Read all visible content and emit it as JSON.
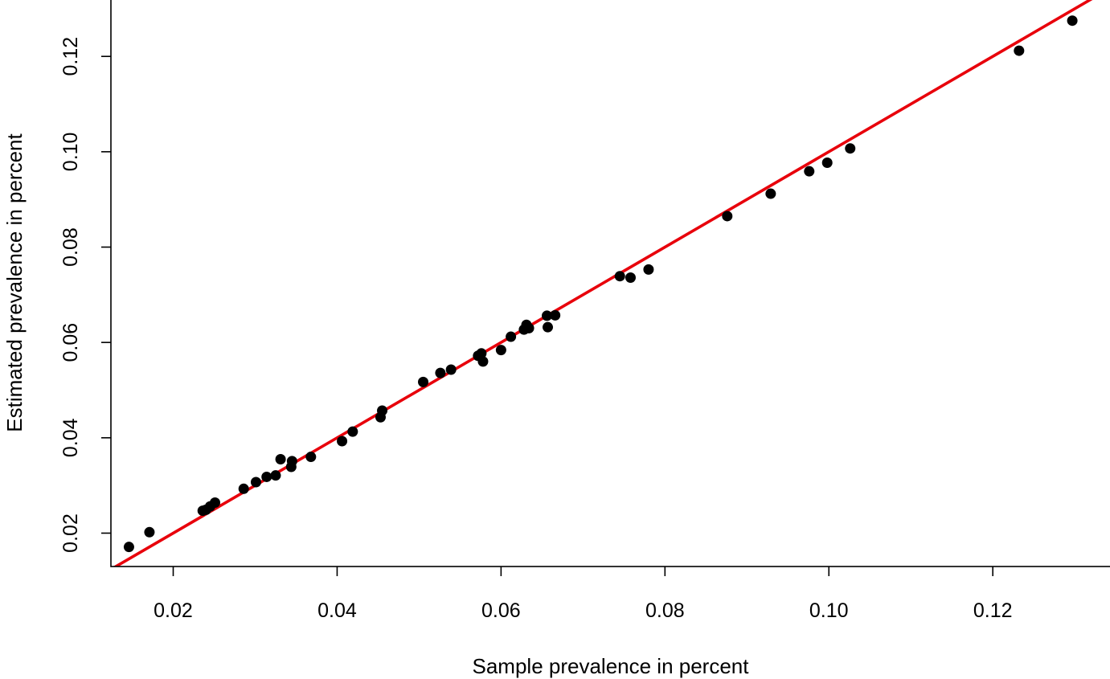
{
  "chart_data": {
    "type": "scatter",
    "title": "",
    "xlabel": "Sample prevalence in percent",
    "ylabel": "Estimated prevalence in percent",
    "xlim": [
      0.0124,
      0.1343
    ],
    "ylim": [
      0.013,
      0.132
    ],
    "grid": false,
    "xticks": [
      0.02,
      0.04,
      0.06,
      0.08,
      0.1,
      0.12
    ],
    "xtick_labels": [
      "0.02",
      "0.04",
      "0.06",
      "0.08",
      "0.10",
      "0.12"
    ],
    "yticks": [
      0.02,
      0.04,
      0.06,
      0.08,
      0.1,
      0.12
    ],
    "ytick_labels": [
      "0.02",
      "0.04",
      "0.06",
      "0.08",
      "0.10",
      "0.12"
    ],
    "points_color": "#000000",
    "line": {
      "color": "#e8000b",
      "intercept": 0.0,
      "slope": 1.0
    },
    "points": [
      [
        0.0146,
        0.0171
      ],
      [
        0.0171,
        0.0202
      ],
      [
        0.0236,
        0.0247
      ],
      [
        0.024,
        0.0249
      ],
      [
        0.0245,
        0.0256
      ],
      [
        0.0251,
        0.0264
      ],
      [
        0.0286,
        0.0293
      ],
      [
        0.0301,
        0.0307
      ],
      [
        0.0314,
        0.0318
      ],
      [
        0.0325,
        0.0321
      ],
      [
        0.0331,
        0.0355
      ],
      [
        0.0344,
        0.0339
      ],
      [
        0.0345,
        0.0351
      ],
      [
        0.0368,
        0.036
      ],
      [
        0.0406,
        0.0393
      ],
      [
        0.0419,
        0.0413
      ],
      [
        0.0453,
        0.0443
      ],
      [
        0.0455,
        0.0457
      ],
      [
        0.0505,
        0.0517
      ],
      [
        0.0526,
        0.0536
      ],
      [
        0.0539,
        0.0543
      ],
      [
        0.0572,
        0.0572
      ],
      [
        0.0576,
        0.0577
      ],
      [
        0.0578,
        0.056
      ],
      [
        0.06,
        0.0584
      ],
      [
        0.0612,
        0.0612
      ],
      [
        0.0628,
        0.0627
      ],
      [
        0.0631,
        0.0637
      ],
      [
        0.0634,
        0.063
      ],
      [
        0.0656,
        0.0656
      ],
      [
        0.0657,
        0.0632
      ],
      [
        0.0666,
        0.0657
      ],
      [
        0.0745,
        0.0739
      ],
      [
        0.0758,
        0.0736
      ],
      [
        0.078,
        0.0753
      ],
      [
        0.0876,
        0.0865
      ],
      [
        0.0929,
        0.0912
      ],
      [
        0.0976,
        0.0959
      ],
      [
        0.0998,
        0.0977
      ],
      [
        0.1026,
        0.1007
      ],
      [
        0.1232,
        0.1212
      ],
      [
        0.1297,
        0.1275
      ]
    ]
  }
}
